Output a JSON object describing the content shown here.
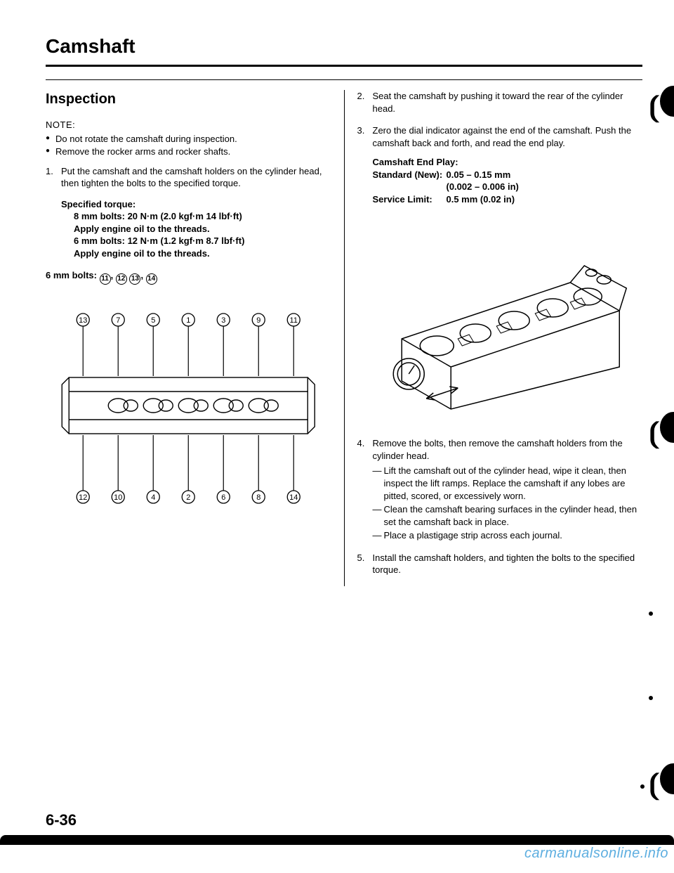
{
  "title": "Camshaft",
  "subhead": "Inspection",
  "note_label": "NOTE:",
  "notes": [
    "Do not rotate the camshaft during inspection.",
    "Remove the rocker arms and rocker shafts."
  ],
  "step1": {
    "num": "1.",
    "text": "Put the camshaft and the camshaft holders on the cylinder head, then tighten the bolts to the specified torque."
  },
  "torque": {
    "head": "Specified torque:",
    "l1": "8 mm bolts: 20 N·m (2.0 kgf·m 14 lbf·ft)",
    "l2": "Apply engine oil to the threads.",
    "l3": "6 mm bolts: 12 N·m (1.2 kgf·m 8.7 lbf·ft)",
    "l4": "Apply engine oil to the threads."
  },
  "bolts6mm": "6 mm bolts: ",
  "bolt_ids_6mm": [
    "11",
    "12",
    "13",
    "14"
  ],
  "top_labels": [
    "13",
    "7",
    "5",
    "1",
    "3",
    "9",
    "11"
  ],
  "bot_labels": [
    "12",
    "10",
    "4",
    "2",
    "6",
    "8",
    "14"
  ],
  "step2": {
    "num": "2.",
    "text": "Seat the camshaft by pushing it toward the rear of the cylinder head."
  },
  "step3": {
    "num": "3.",
    "text": "Zero the dial indicator against the end of the camshaft. Push the camshaft back and forth, and read the end play."
  },
  "endplay": {
    "l1": "Camshaft End Play:",
    "l2a": "Standard (New):",
    "l2b": "0.05 – 0.15 mm",
    "l3": "(0.002 – 0.006 in)",
    "l4a": "Service Limit:",
    "l4b": "0.5 mm (0.02 in)"
  },
  "step4": {
    "num": "4.",
    "text": "Remove the bolts, then remove the camshaft holders from the cylinder head.",
    "sub": [
      "Lift the camshaft out of the cylinder head, wipe it clean, then inspect the lift ramps. Replace the camshaft if any lobes are pitted, scored, or excessively worn.",
      "Clean the camshaft bearing surfaces in the cylinder head, then set the camshaft back in place.",
      "Place a plastigage strip across each journal."
    ]
  },
  "step5": {
    "num": "5.",
    "text": "Install the camshaft holders, and tighten the bolts to the specified torque."
  },
  "page_num": "6-36",
  "watermark": "carmanualsonline.info",
  "colors": {
    "text": "#000000",
    "bg": "#ffffff",
    "watermark": "#5daee0"
  }
}
